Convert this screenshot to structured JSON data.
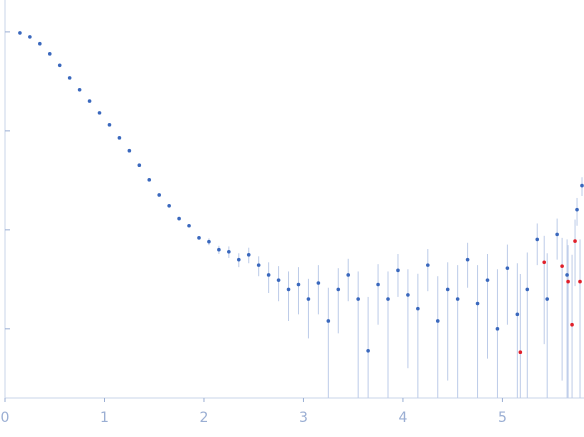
{
  "chart_data": {
    "type": "scatter",
    "log_y": true,
    "xlim": [
      0,
      5.82
    ],
    "xticks": [
      0,
      1,
      2,
      3,
      4,
      5
    ],
    "ylim": [
      0.0002,
      2.1
    ],
    "yticks": [
      1,
      0.1,
      0.01,
      0.001
    ],
    "error_color": "#bccbe8",
    "series": [
      {
        "color": "#3a68bd",
        "x": [
          0.15,
          0.25,
          0.35,
          0.45,
          0.55,
          0.65,
          0.75,
          0.85,
          0.95,
          1.05,
          1.15,
          1.25,
          1.35,
          1.45,
          1.55,
          1.65,
          1.75,
          1.85,
          1.95,
          2.05,
          2.15,
          2.25,
          2.35,
          2.45,
          2.55,
          2.65,
          2.75,
          2.85,
          2.95,
          3.05,
          3.15,
          3.25,
          3.35,
          3.45,
          3.55,
          3.65,
          3.75,
          3.85,
          3.95,
          4.05,
          4.15,
          4.25,
          4.35,
          4.45,
          4.55,
          4.65,
          4.75,
          4.85,
          4.95,
          5.05,
          5.15,
          5.25,
          5.35,
          5.45,
          5.55,
          5.65,
          5.75,
          5.8
        ],
        "values": [
          0.977,
          0.89,
          0.76,
          0.6,
          0.46,
          0.343,
          0.26,
          0.2,
          0.152,
          0.115,
          0.085,
          0.063,
          0.045,
          0.032,
          0.0225,
          0.0175,
          0.013,
          0.011,
          0.0083,
          0.0076,
          0.0063,
          0.006,
          0.005,
          0.0056,
          0.0044,
          0.0035,
          0.0031,
          0.0025,
          0.0028,
          0.002,
          0.0029,
          0.0012,
          0.0025,
          0.0035,
          0.002,
          0.0006,
          0.0028,
          0.002,
          0.0039,
          0.0022,
          0.0016,
          0.0044,
          0.0012,
          0.0025,
          0.002,
          0.005,
          0.0018,
          0.0031,
          0.001,
          0.0041,
          0.0014,
          0.0025,
          0.008,
          0.002,
          0.009,
          0.0035,
          0.016,
          0.028
        ],
        "errors": [
          0.01,
          0.01,
          0.008,
          0.006,
          0.005,
          0.004,
          0.003,
          0.003,
          0.002,
          0.002,
          0.0015,
          0.0012,
          0.001,
          0.0008,
          0.0006,
          0.0005,
          0.0004,
          0.0004,
          0.0003,
          0.0006,
          0.0006,
          0.0008,
          0.0008,
          0.001,
          0.001,
          0.0012,
          0.0012,
          0.0013,
          0.0014,
          0.0012,
          0.0015,
          0.0014,
          0.0016,
          0.0016,
          0.0018,
          0.0015,
          0.0017,
          0.0018,
          0.0018,
          0.0018,
          0.002,
          0.002,
          0.0022,
          0.0022,
          0.0024,
          0.0024,
          0.0026,
          0.0026,
          0.003,
          0.003,
          0.0032,
          0.0034,
          0.0036,
          0.0038,
          0.004,
          0.0045,
          0.005,
          0.006
        ]
      },
      {
        "color": "#e0202a",
        "x": [
          5.18,
          5.42,
          5.6,
          5.66,
          5.7,
          5.73,
          5.78
        ],
        "values": [
          0.00058,
          0.0047,
          0.0043,
          0.003,
          0.0011,
          0.0077,
          0.003
        ],
        "errors": [
          0.003,
          0.004,
          0.004,
          0.004,
          0.0045,
          0.005,
          0.005
        ]
      }
    ]
  }
}
